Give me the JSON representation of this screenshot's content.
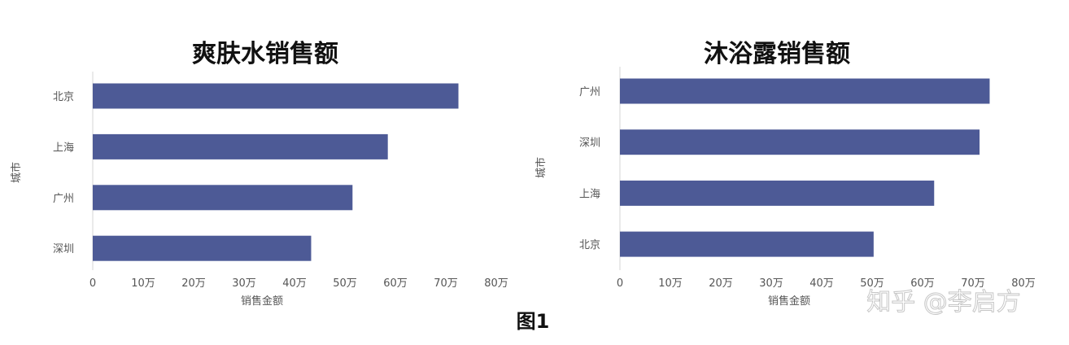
{
  "chart_data": [
    {
      "type": "bar",
      "orientation": "horizontal",
      "title": "爽肤水销售额",
      "xlabel": "销售金额",
      "ylabel": "城市",
      "categories": [
        "北京",
        "上海",
        "广州",
        "深圳"
      ],
      "values": [
        72.5,
        58.5,
        51.5,
        43.3
      ],
      "xlim": [
        0,
        80
      ],
      "xticks": [
        0,
        10,
        20,
        30,
        40,
        50,
        60,
        70,
        80
      ],
      "xtick_labels": [
        "0",
        "10万",
        "20万",
        "30万",
        "40万",
        "50万",
        "60万",
        "70万",
        "80万"
      ],
      "color": "#4d5a96",
      "grid": false
    },
    {
      "type": "bar",
      "orientation": "horizontal",
      "title": "沐浴露销售额",
      "xlabel": "销售金额",
      "ylabel": "城市",
      "categories": [
        "广州",
        "深圳",
        "上海",
        "北京"
      ],
      "values": [
        73.3,
        71.3,
        62.3,
        50.3
      ],
      "xlim": [
        0,
        80
      ],
      "xticks": [
        0,
        10,
        20,
        30,
        40,
        50,
        60,
        70,
        80
      ],
      "xtick_labels": [
        "0",
        "10万",
        "20万",
        "30万",
        "40万",
        "50万",
        "60万",
        "70万",
        "80万"
      ],
      "color": "#4d5a96",
      "grid": false
    }
  ],
  "caption": "图1",
  "watermark": "知乎 @李启方"
}
